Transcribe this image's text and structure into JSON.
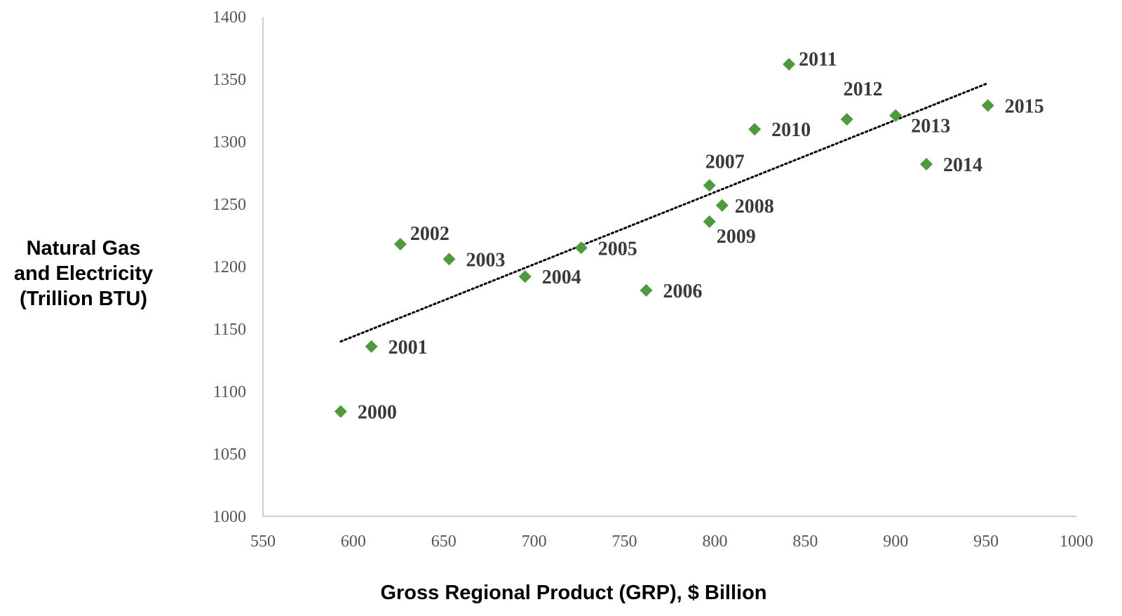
{
  "chart_data": {
    "type": "scatter",
    "title": "",
    "xlabel": "Gross Regional Product (GRP), $ Billion",
    "ylabel_lines": [
      "Natural Gas",
      "and Electricity",
      "(Trillion BTU)"
    ],
    "xlim": [
      550,
      1000
    ],
    "ylim": [
      1000,
      1400
    ],
    "xticks": [
      550,
      600,
      650,
      700,
      750,
      800,
      850,
      900,
      950,
      1000
    ],
    "yticks": [
      1000,
      1050,
      1100,
      1150,
      1200,
      1250,
      1300,
      1350,
      1400
    ],
    "grid": false,
    "legend": "none",
    "marker": "diamond",
    "marker_color": "#4e9a3c",
    "trendline": {
      "type": "linear",
      "style": "dotted",
      "color": "#000000",
      "x_range": [
        593,
        951
      ]
    },
    "points": [
      {
        "label": "2000",
        "x": 593,
        "y": 1084
      },
      {
        "label": "2001",
        "x": 610,
        "y": 1136
      },
      {
        "label": "2002",
        "x": 626,
        "y": 1218
      },
      {
        "label": "2003",
        "x": 653,
        "y": 1206
      },
      {
        "label": "2004",
        "x": 695,
        "y": 1192
      },
      {
        "label": "2005",
        "x": 726,
        "y": 1215
      },
      {
        "label": "2006",
        "x": 762,
        "y": 1181
      },
      {
        "label": "2007",
        "x": 797,
        "y": 1265
      },
      {
        "label": "2008",
        "x": 804,
        "y": 1249
      },
      {
        "label": "2009",
        "x": 797,
        "y": 1236
      },
      {
        "label": "2010",
        "x": 822,
        "y": 1310
      },
      {
        "label": "2011",
        "x": 841,
        "y": 1362
      },
      {
        "label": "2012",
        "x": 873,
        "y": 1318
      },
      {
        "label": "2013",
        "x": 900,
        "y": 1321
      },
      {
        "label": "2014",
        "x": 917,
        "y": 1282
      },
      {
        "label": "2015",
        "x": 951,
        "y": 1329
      }
    ]
  }
}
